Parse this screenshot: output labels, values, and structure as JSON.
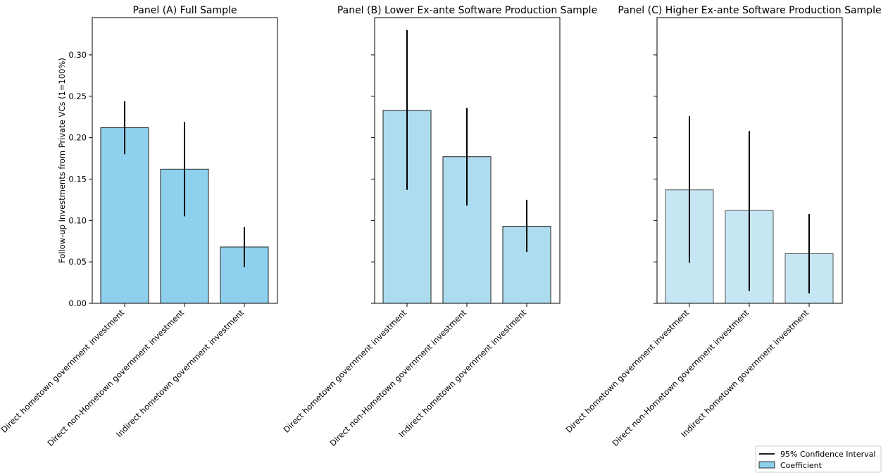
{
  "chart_data": [
    {
      "type": "bar",
      "title": "Panel (A) Full Sample",
      "ylabel": "Follow-up Investments from Private VCs (1=100%)",
      "categories": [
        "Direct hometown government investment",
        "Direct non-Hometown government investment",
        "Indirect hometown government investment"
      ],
      "values": [
        0.212,
        0.162,
        0.068
      ],
      "ci_lower": [
        0.18,
        0.105,
        0.044
      ],
      "ci_upper": [
        0.244,
        0.219,
        0.092
      ],
      "bar_color": "#8fd1ed",
      "opacity": 1.0,
      "ylim": [
        0,
        0.345
      ],
      "yticks": [
        "0.00",
        "0.05",
        "0.10",
        "0.15",
        "0.20",
        "0.25",
        "0.30"
      ]
    },
    {
      "type": "bar",
      "title": "Panel (B) Lower Ex-ante Software Production Sample",
      "categories": [
        "Direct hometown government investment",
        "Direct non-Hometown government investment",
        "Indirect hometown government investment"
      ],
      "values": [
        0.233,
        0.177,
        0.093
      ],
      "ci_lower": [
        0.137,
        0.118,
        0.062
      ],
      "ci_upper": [
        0.33,
        0.236,
        0.125
      ],
      "bar_color": "#addcee",
      "opacity": 1.0,
      "ylim": [
        0,
        0.345
      ]
    },
    {
      "type": "bar",
      "title": "Panel (C) Higher Ex-ante Software Production Sample",
      "categories": [
        "Direct hometown government investment",
        "Direct non-Hometown government investment",
        "Indirect hometown government investment"
      ],
      "values": [
        0.137,
        0.112,
        0.06
      ],
      "ci_lower": [
        0.049,
        0.015,
        0.012
      ],
      "ci_upper": [
        0.226,
        0.208,
        0.108
      ],
      "bar_color": "#c6e6f4",
      "opacity": 1.0,
      "ylim": [
        0,
        0.345
      ]
    }
  ],
  "legend": {
    "items": [
      {
        "label": "95% Confidence Interval",
        "kind": "line",
        "color": "#000000"
      },
      {
        "label": "Coefficient",
        "kind": "patch",
        "color": "#8fd1ed"
      }
    ]
  }
}
